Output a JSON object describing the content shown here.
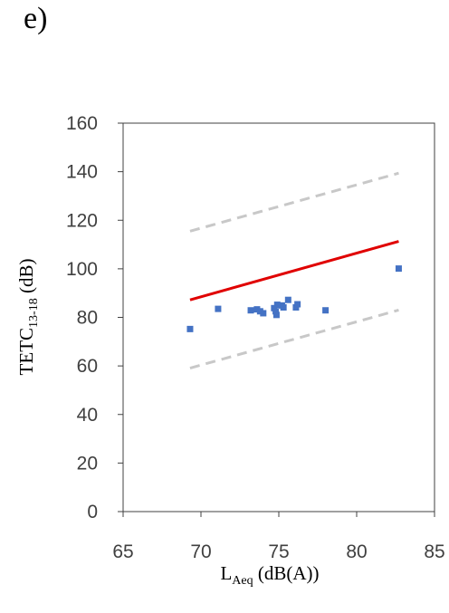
{
  "panel_label": "e)",
  "chart_data": {
    "type": "scatter",
    "title": "",
    "xlabel": {
      "main": "L",
      "sub": "Aeq",
      "rest": " (dB(A))"
    },
    "ylabel": {
      "main": "TETC",
      "sub": "13-18",
      "rest": " (dB)"
    },
    "xlim": [
      65,
      85
    ],
    "ylim": [
      0,
      160
    ],
    "xticks": [
      "65",
      "70",
      "75",
      "80",
      "85"
    ],
    "yticks": [
      "0",
      "20",
      "40",
      "60",
      "80",
      "100",
      "120",
      "140",
      "160"
    ],
    "grid": false,
    "colors": {
      "points": "#4472C4",
      "fit": "#E00000",
      "bounds": "#C8C8C8",
      "axis": "#404040"
    },
    "points": [
      {
        "x": 69.3,
        "y": 75.2
      },
      {
        "x": 71.1,
        "y": 83.5
      },
      {
        "x": 73.2,
        "y": 82.9
      },
      {
        "x": 73.6,
        "y": 83.3
      },
      {
        "x": 73.8,
        "y": 82.5
      },
      {
        "x": 74.0,
        "y": 81.7
      },
      {
        "x": 74.7,
        "y": 83.8
      },
      {
        "x": 74.8,
        "y": 82.5
      },
      {
        "x": 74.85,
        "y": 81.0
      },
      {
        "x": 74.9,
        "y": 85.2
      },
      {
        "x": 75.2,
        "y": 84.9
      },
      {
        "x": 75.3,
        "y": 84.1
      },
      {
        "x": 75.6,
        "y": 87.2
      },
      {
        "x": 76.1,
        "y": 84.1
      },
      {
        "x": 76.2,
        "y": 85.4
      },
      {
        "x": 78.0,
        "y": 82.9
      },
      {
        "x": 82.7,
        "y": 100.1
      }
    ],
    "fit_line": [
      {
        "x": 69.3,
        "y": 87.2
      },
      {
        "x": 82.7,
        "y": 111.3
      }
    ],
    "upper_bound": [
      {
        "x": 69.3,
        "y": 115.5
      },
      {
        "x": 82.7,
        "y": 139.4
      }
    ],
    "lower_bound": [
      {
        "x": 69.3,
        "y": 59.1
      },
      {
        "x": 82.7,
        "y": 83.0
      }
    ]
  }
}
